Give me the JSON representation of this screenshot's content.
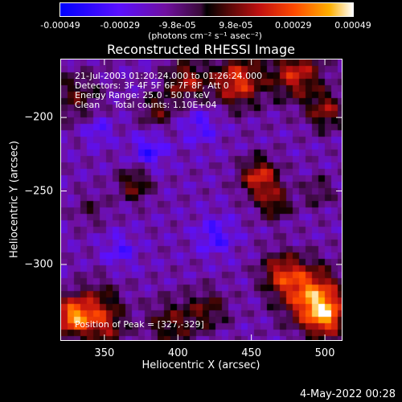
{
  "chart_data": {
    "type": "heatmap",
    "title": "Reconstructed RHESSI Image",
    "xlabel": "Heliocentric X (arcsec)",
    "ylabel": "Heliocentric Y (arcsec)",
    "xlim": [
      320,
      512
    ],
    "ylim": [
      -352,
      -160
    ],
    "x_ticks": [
      "350",
      "400",
      "450",
      "500"
    ],
    "x_tick_values": [
      350,
      400,
      450,
      500
    ],
    "y_ticks": [
      "-200",
      "-250",
      "-300"
    ],
    "y_tick_values": [
      -200,
      -250,
      -300
    ],
    "colorbar": {
      "ticks": [
        "-0.00049",
        "-0.00029",
        "-9.8e-05",
        "9.8e-05",
        "0.00029",
        "0.00049"
      ],
      "tick_values": [
        -0.00049,
        -0.00029,
        -9.8e-05,
        9.8e-05,
        0.00029,
        0.00049
      ],
      "range": [
        -0.00049,
        0.00049
      ],
      "units": "(photons cm⁻² s⁻¹ asec⁻²)"
    },
    "annotations": [
      "21-Jul-2003 01:20:24.000 to 01:26:24.000",
      "Detectors: 3F 4F 5F 6F 7F 8F, Att 0",
      "Energy Range: 25.0 - 50.0 keV",
      "Clean     Total counts: 1.10E+04"
    ],
    "peak_label": "Position of Peak = [327,-329]",
    "peak": [
      327,
      -329
    ],
    "blobs": [
      {
        "x": 328,
        "y": -335,
        "amp": 0.00049,
        "sigma": 9
      },
      {
        "x": 345,
        "y": -325,
        "amp": 0.0002,
        "sigma": 11
      },
      {
        "x": 350,
        "y": -342,
        "amp": 0.00025,
        "sigma": 10
      },
      {
        "x": 395,
        "y": -340,
        "amp": 0.00022,
        "sigma": 12
      },
      {
        "x": 420,
        "y": -330,
        "amp": 0.0002,
        "sigma": 10
      },
      {
        "x": 490,
        "y": -320,
        "amp": 0.00045,
        "sigma": 14
      },
      {
        "x": 500,
        "y": -335,
        "amp": 0.0004,
        "sigma": 10
      },
      {
        "x": 470,
        "y": -305,
        "amp": 0.0003,
        "sigma": 10
      },
      {
        "x": 455,
        "y": -240,
        "amp": 0.00038,
        "sigma": 9
      },
      {
        "x": 465,
        "y": -258,
        "amp": 0.00025,
        "sigma": 8
      },
      {
        "x": 440,
        "y": -175,
        "amp": 0.0004,
        "sigma": 12
      },
      {
        "x": 480,
        "y": -170,
        "amp": 0.00035,
        "sigma": 12
      },
      {
        "x": 500,
        "y": -195,
        "amp": 0.00028,
        "sigma": 9
      },
      {
        "x": 405,
        "y": -175,
        "amp": 0.0003,
        "sigma": 10
      },
      {
        "x": 385,
        "y": -195,
        "amp": 0.00022,
        "sigma": 8
      },
      {
        "x": 330,
        "y": -185,
        "amp": 0.0002,
        "sigma": 12
      },
      {
        "x": 370,
        "y": -245,
        "amp": 0.00025,
        "sigma": 8
      },
      {
        "x": 340,
        "y": -262,
        "amp": 0.00012,
        "sigma": 8
      },
      {
        "x": 495,
        "y": -250,
        "amp": 0.00015,
        "sigma": 8
      },
      {
        "x": 380,
        "y": -222,
        "amp": -0.0002,
        "sigma": 8
      },
      {
        "x": 425,
        "y": -280,
        "amp": -0.00018,
        "sigma": 9
      },
      {
        "x": 360,
        "y": -290,
        "amp": -0.00015,
        "sigma": 8
      },
      {
        "x": 415,
        "y": -205,
        "amp": -0.00015,
        "sigma": 9
      },
      {
        "x": 345,
        "y": -208,
        "amp": -0.00015,
        "sigma": 7
      }
    ]
  },
  "timestamp": "4-May-2022 00:28"
}
